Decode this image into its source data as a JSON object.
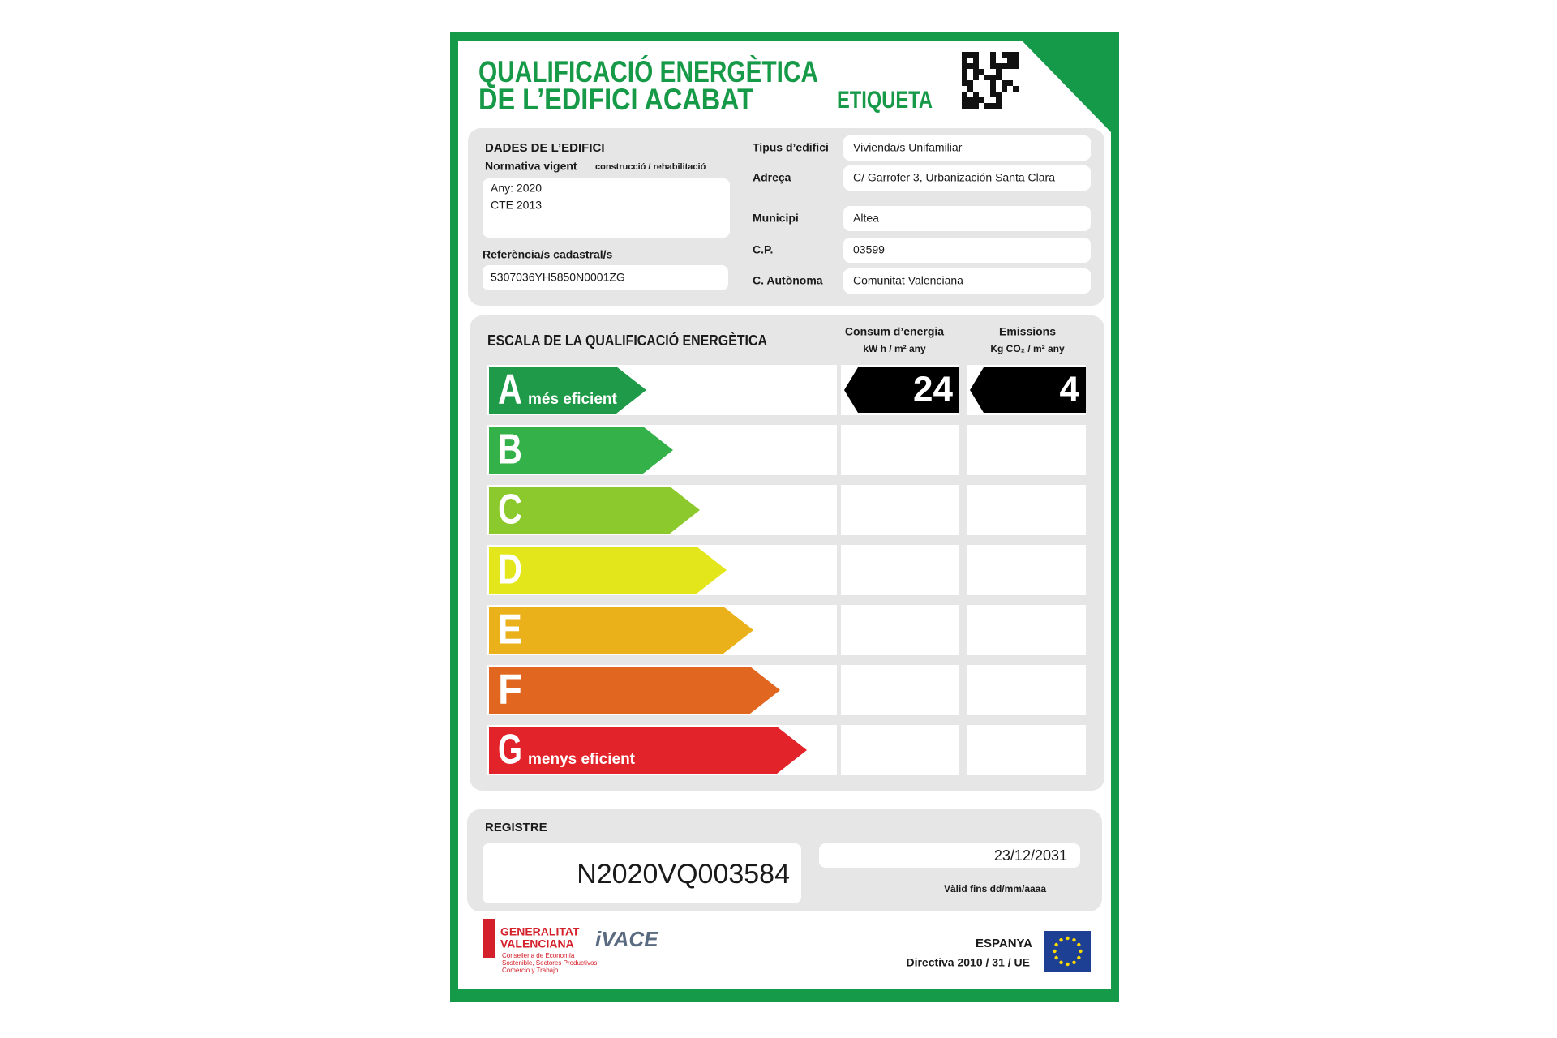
{
  "header": {
    "title_line1": "QUALIFICACIÓ ENERGÈTICA",
    "title_line2": "DE L’EDIFICI  ACABAT",
    "label": "ETIQUETA"
  },
  "building": {
    "section_title": "DADES DE L’EDIFICI",
    "regulation_label": "Normativa vigent",
    "regulation_note": "construcció / rehabilitació",
    "regulation_lines": [
      "Any: 2020",
      "CTE 2013"
    ],
    "cadastral_label": "Referència/s cadastral/s",
    "cadastral_ref": "5307036YH5850N0001ZG",
    "fields": [
      {
        "label": "Tipus d’edifici",
        "value": "Vivienda/s Unifamiliar"
      },
      {
        "label": "Adreça",
        "value": "C/ Garrofer 3, Urbanización Santa Clara"
      },
      {
        "label": "Municipi",
        "value": "Altea"
      },
      {
        "label": "C.P.",
        "value": "03599"
      },
      {
        "label": "C. Autònoma",
        "value": "Comunitat Valenciana"
      }
    ]
  },
  "scale": {
    "title": "ESCALA DE LA QUALIFICACIÓ ENERGÈTICA",
    "energy_header": "Consum d’energia",
    "energy_unit": "kW h / m² any",
    "emissions_header": "Emissions",
    "emissions_unit": "Kg CO₂ / m² any",
    "classes": [
      {
        "letter": "A",
        "note": "més eficient",
        "color": "#1f9a48"
      },
      {
        "letter": "B",
        "color": "#35b14a"
      },
      {
        "letter": "C",
        "color": "#8cc92c"
      },
      {
        "letter": "D",
        "color": "#e2e61b"
      },
      {
        "letter": "E",
        "color": "#ebb11a"
      },
      {
        "letter": "F",
        "color": "#e1661f"
      },
      {
        "letter": "G",
        "note": "menys eficient",
        "color": "#e3232a"
      }
    ],
    "rating": {
      "class": "A",
      "energy": 24,
      "emissions": 4
    }
  },
  "register": {
    "title": "REGISTRE",
    "number": "N2020VQ003584",
    "valid_until": "23/12/2031",
    "valid_label": "Vàlid fins dd/mm/aaaa"
  },
  "footer": {
    "gv_line1": "GENERALITAT",
    "gv_line2": "VALENCIANA",
    "gv_dept": [
      "Conselleria de Economía",
      "Sostenible, Sectores Productivos,",
      "Comercio y Trabajo"
    ],
    "ivace": "iVACE",
    "country": "ESPANYA",
    "directive": "Directiva 2010 / 31 / UE"
  }
}
